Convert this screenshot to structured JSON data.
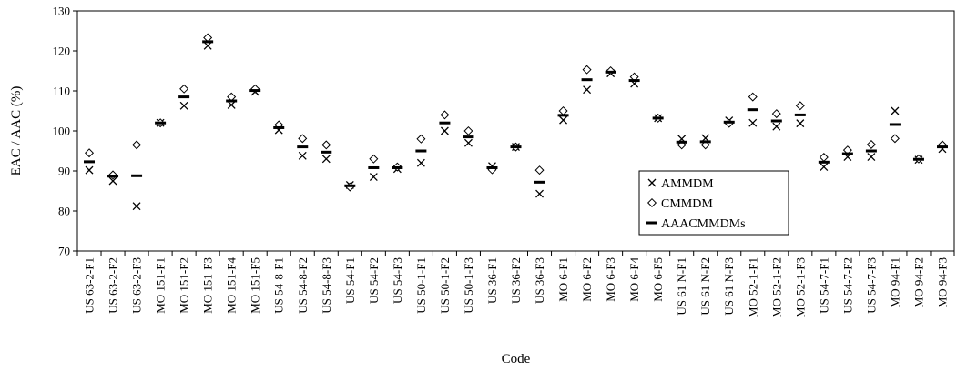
{
  "chart_data": {
    "type": "scatter",
    "xlabel": "Code",
    "ylabel": "EAC / AAC (%)",
    "ylim": [
      70,
      130
    ],
    "yticks": [
      70,
      80,
      90,
      100,
      110,
      120,
      130
    ],
    "grid": false,
    "legend_position": "center-right",
    "categories": [
      "US 63-2-F1",
      "US 63-2-F2",
      "US 63-2-F3",
      "MO 151-F1",
      "MO 151-F2",
      "MO 151-F3",
      "MO 151-F4",
      "MO 151-F5",
      "US 54-8-F1",
      "US 54-8-F2",
      "US 54-8-F3",
      "US 54-F1",
      "US 54-F2",
      "US 54-F3",
      "US 50-1-F1",
      "US 50-1-F2",
      "US 50-1-F3",
      "US 36-F1",
      "US 36-F2",
      "US 36-F3",
      "MO 6-F1",
      "MO 6-F2",
      "MO 6-F3",
      "MO 6-F4",
      "MO 6-F5",
      "US 61 N-F1",
      "US 61 N-F2",
      "US 61 N-F3",
      "MO 52-1-F1",
      "MO 52-1-F2",
      "MO 52-1-F3",
      "US 54-7-F1",
      "US 54-7-F2",
      "US 54-7-F3",
      "MO 94-F1",
      "MO 94-F2",
      "MO 94-F3"
    ],
    "series": [
      {
        "name": "AMMDM",
        "marker": "x",
        "values": [
          90.2,
          87.5,
          81.2,
          102.0,
          106.3,
          121.3,
          106.5,
          109.8,
          100.2,
          93.8,
          93.0,
          86.5,
          88.5,
          90.5,
          92.0,
          100.0,
          97.0,
          91.2,
          96.0,
          84.3,
          102.7,
          110.3,
          114.4,
          111.8,
          103.2,
          98.0,
          98.2,
          102.6,
          102.0,
          101.1,
          101.9,
          91.0,
          93.5,
          93.5,
          105.0,
          92.8,
          95.5
        ]
      },
      {
        "name": "CMMDM",
        "marker": "diamond",
        "values": [
          94.5,
          89.0,
          96.5,
          102.0,
          110.5,
          123.3,
          108.5,
          110.5,
          101.5,
          98.1,
          96.5,
          86.0,
          93.0,
          91.0,
          98.0,
          104.0,
          100.0,
          90.3,
          96.0,
          90.2,
          105.0,
          115.3,
          115.0,
          113.5,
          103.2,
          96.5,
          96.5,
          101.9,
          108.5,
          104.3,
          106.3,
          93.4,
          95.2,
          96.6,
          98.1,
          93.0,
          96.5
        ]
      },
      {
        "name": "AAACMMDMs",
        "marker": "dash",
        "values": [
          92.3,
          88.7,
          88.8,
          102.0,
          108.5,
          122.3,
          107.5,
          110.1,
          100.8,
          96.0,
          94.7,
          86.3,
          90.8,
          90.8,
          95.0,
          102.0,
          98.5,
          90.8,
          96.0,
          87.2,
          103.9,
          112.8,
          114.7,
          112.6,
          103.2,
          97.2,
          97.3,
          102.2,
          105.3,
          102.5,
          104.0,
          92.2,
          94.3,
          95.0,
          101.6,
          92.9,
          96.0
        ]
      }
    ]
  }
}
